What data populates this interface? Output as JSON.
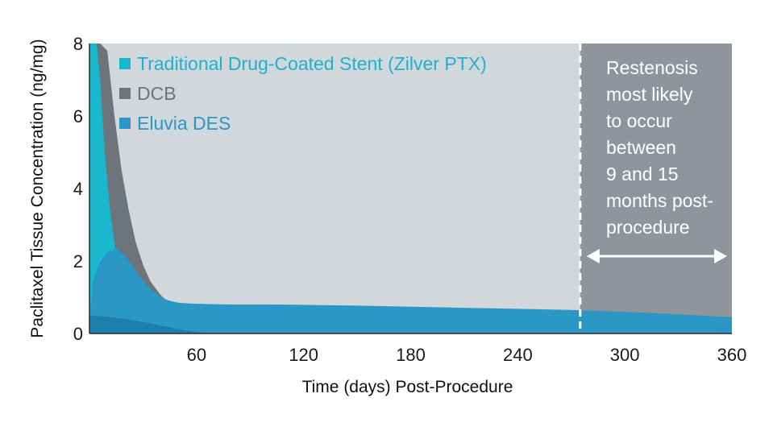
{
  "chart_data": {
    "type": "area",
    "title": "",
    "xlabel": "Time (days) Post-Procedure",
    "ylabel": "Paclitaxel Tissue Concentration (ng/mg)",
    "xlim": [
      0,
      360
    ],
    "ylim": [
      0,
      8
    ],
    "xticks": [
      60,
      120,
      180,
      240,
      300,
      360
    ],
    "yticks": [
      0,
      2,
      4,
      6,
      8
    ],
    "grid": false,
    "legend_position": "top-left",
    "shaded_region": {
      "x_start": 275,
      "x_end": 360,
      "label": "Restenosis most likely to occur between 9 and 15 months post-procedure",
      "label_lines": [
        "Restenosis",
        "most likely",
        "to occur",
        "between",
        "9 and 15",
        "months post-",
        "procedure"
      ],
      "color": "#8f959b"
    },
    "background_color": "#d2d7db",
    "series": [
      {
        "name": "DCB",
        "color": "#6d747a",
        "x": [
          0,
          6,
          10,
          14,
          18,
          22,
          26,
          30,
          34,
          40,
          50,
          60,
          70,
          80,
          90,
          95
        ],
        "y": [
          8,
          8,
          7.8,
          6.0,
          4.5,
          3.4,
          2.5,
          1.9,
          1.45,
          1.05,
          0.62,
          0.36,
          0.2,
          0.09,
          0.02,
          0
        ]
      },
      {
        "name": "Traditional Drug-Coated Stent (Zilver PTX)",
        "color": "#19b8cf",
        "x": [
          0,
          2,
          4,
          6,
          8,
          10,
          12,
          14,
          16,
          18,
          20,
          24,
          28,
          32,
          36,
          40,
          45,
          50,
          55,
          60,
          65
        ],
        "y": [
          8,
          8,
          8,
          7.0,
          5.4,
          4.2,
          3.2,
          2.5,
          1.9,
          1.45,
          1.15,
          0.85,
          0.62,
          0.45,
          0.32,
          0.22,
          0.13,
          0.07,
          0.03,
          0.01,
          0
        ]
      },
      {
        "name": "Eluvia DES",
        "color": "#2a97c4",
        "x": [
          0,
          2,
          5,
          10,
          15,
          20,
          25,
          30,
          35,
          40,
          45,
          50,
          55,
          60,
          70,
          80,
          100,
          120,
          150,
          180,
          210,
          240,
          270,
          300,
          330,
          360
        ],
        "y": [
          0.5,
          1.4,
          1.9,
          2.25,
          2.35,
          2.15,
          1.8,
          1.45,
          1.2,
          1.0,
          0.9,
          0.85,
          0.83,
          0.82,
          0.81,
          0.8,
          0.8,
          0.79,
          0.77,
          0.74,
          0.71,
          0.68,
          0.65,
          0.6,
          0.53,
          0.45
        ]
      },
      {
        "name": "",
        "color": "#1d7fae",
        "x": [
          0,
          10,
          20,
          30,
          40,
          50,
          60,
          65
        ],
        "y": [
          0.5,
          0.46,
          0.4,
          0.32,
          0.22,
          0.12,
          0.04,
          0
        ]
      }
    ],
    "legend": [
      {
        "label": "Traditional Drug-Coated Stent (Zilver PTX)",
        "color": "#19b8cf",
        "text_color": "#1eb2cc"
      },
      {
        "label": "DCB",
        "color": "#6d747a",
        "text_color": "#6d747a"
      },
      {
        "label": "Eluvia DES",
        "color": "#2a97c4",
        "text_color": "#2a97c4"
      }
    ]
  }
}
